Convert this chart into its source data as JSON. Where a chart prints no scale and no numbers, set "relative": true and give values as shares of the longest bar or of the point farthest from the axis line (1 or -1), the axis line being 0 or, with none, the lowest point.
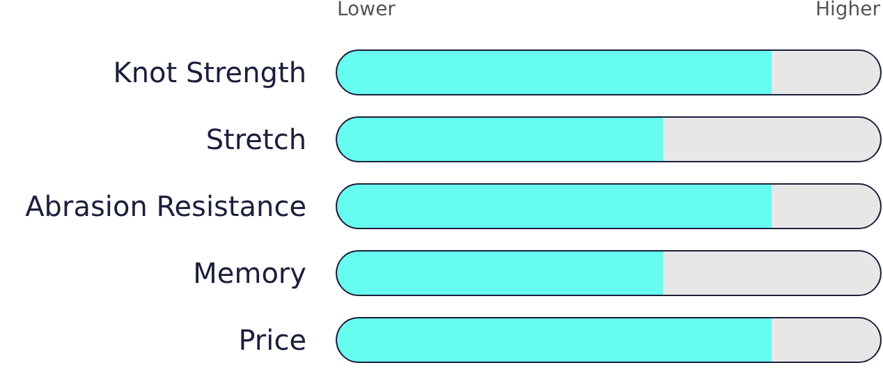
{
  "chart_data": {
    "type": "bar",
    "orientation": "horizontal",
    "stacked": true,
    "relative": true,
    "categories": [
      "Knot Strength",
      "Stretch",
      "Abrasion Resistance",
      "Memory",
      "Price"
    ],
    "series": [
      {
        "values": [
          0.2,
          0.2,
          0.2,
          0.2,
          0.2
        ],
        "colors": [
          "#66fcef",
          "#66fcef",
          "#66fcef",
          "#66fcef",
          "#66fcef"
        ]
      },
      {
        "values": [
          0.2,
          0.2,
          0.2,
          0.2,
          0.2
        ],
        "colors": [
          "#66fcef",
          "#66fcef",
          "#66fcef",
          "#66fcef",
          "#66fcef"
        ]
      },
      {
        "values": [
          0.2,
          0.2,
          0.2,
          0.2,
          0.2
        ],
        "colors": [
          "#66fcef",
          "#66fcef",
          "#66fcef",
          "#66fcef",
          "#66fcef"
        ]
      },
      {
        "values": [
          0.2,
          0.2,
          0.2,
          0.2,
          0.2
        ],
        "colors": [
          "#66fcef",
          "#e7e7e7",
          "#66fcef",
          "#e7e7e7",
          "#66fcef"
        ]
      },
      {
        "values": [
          0.2,
          0.2,
          0.2,
          0.2,
          0.2
        ],
        "colors": [
          "#e7e7e7",
          "#e7e7e7",
          "#e7e7e7",
          "#e7e7e7",
          "#e7e7e7"
        ]
      }
    ],
    "annotations": [
      "Lower",
      "Higher"
    ]
  }
}
